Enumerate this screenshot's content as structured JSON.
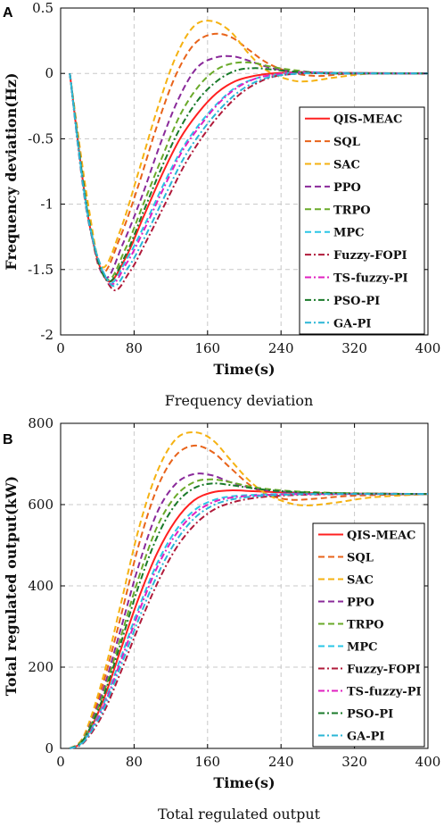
{
  "chart_data": [
    {
      "panel": "A",
      "type": "line",
      "caption": "Frequency deviation",
      "xlabel": "Time(s)",
      "ylabel": "Frequency deviation(Hz)",
      "xlim": [
        0,
        400
      ],
      "ylim": [
        -2,
        0.5
      ],
      "xticks": [
        0,
        80,
        160,
        240,
        320,
        400
      ],
      "yticks": [
        0.5,
        0,
        -0.5,
        -1,
        -1.5,
        -2
      ],
      "ytick_labels": [
        "0.5",
        "0",
        "-0.5",
        "-1",
        "-1.5",
        "-2"
      ],
      "xtick_labels": [
        "0",
        "80",
        "160",
        "240",
        "320",
        "400"
      ],
      "grid": true,
      "legend_position": "lower-right",
      "series": [
        {
          "name": "QIS-MEAC",
          "color": "#ff2020",
          "dash": "solid",
          "x": [
            10,
            30,
            50,
            70,
            90,
            110,
            130,
            150,
            170,
            190,
            210,
            230,
            260,
            300,
            400
          ],
          "y": [
            0,
            -1.1,
            -1.58,
            -1.42,
            -1.1,
            -0.78,
            -0.5,
            -0.3,
            -0.15,
            -0.06,
            -0.02,
            0.0,
            0.01,
            0.005,
            0.0
          ]
        },
        {
          "name": "SQL",
          "color": "#e8631a",
          "dash": "dash",
          "x": [
            10,
            30,
            45,
            65,
            85,
            105,
            125,
            145,
            165,
            185,
            205,
            225,
            250,
            280,
            320,
            400
          ],
          "y": [
            0,
            -1.05,
            -1.52,
            -1.25,
            -0.85,
            -0.4,
            -0.02,
            0.22,
            0.3,
            0.28,
            0.18,
            0.08,
            0.01,
            -0.02,
            0.0,
            0.0
          ]
        },
        {
          "name": "SAC",
          "color": "#f5b212",
          "dash": "dash",
          "x": [
            10,
            30,
            45,
            65,
            85,
            105,
            125,
            145,
            165,
            185,
            205,
            225,
            250,
            270,
            300,
            340,
            400
          ],
          "y": [
            0,
            -1.0,
            -1.48,
            -1.2,
            -0.75,
            -0.28,
            0.12,
            0.36,
            0.4,
            0.32,
            0.15,
            0.02,
            -0.05,
            -0.06,
            -0.03,
            0.0,
            0.0
          ]
        },
        {
          "name": "PPO",
          "color": "#8a2a9a",
          "dash": "dash",
          "x": [
            10,
            30,
            48,
            68,
            88,
            108,
            128,
            148,
            168,
            188,
            208,
            230,
            260,
            300,
            400
          ],
          "y": [
            0,
            -1.08,
            -1.56,
            -1.3,
            -0.95,
            -0.55,
            -0.2,
            0.04,
            0.12,
            0.13,
            0.09,
            0.04,
            0.01,
            0.0,
            0.0
          ]
        },
        {
          "name": "TRPO",
          "color": "#6aaa2a",
          "dash": "dash",
          "x": [
            10,
            30,
            50,
            70,
            90,
            110,
            130,
            150,
            170,
            190,
            210,
            230,
            260,
            300,
            400
          ],
          "y": [
            0,
            -1.08,
            -1.57,
            -1.35,
            -1.0,
            -0.65,
            -0.32,
            -0.1,
            0.03,
            0.08,
            0.08,
            0.05,
            0.02,
            0.0,
            0.0
          ]
        },
        {
          "name": "MPC",
          "color": "#2ac6e6",
          "dash": "dash",
          "x": [
            10,
            30,
            52,
            72,
            92,
            112,
            132,
            152,
            172,
            192,
            212,
            232,
            262,
            300,
            400
          ],
          "y": [
            0,
            -1.1,
            -1.59,
            -1.42,
            -1.15,
            -0.85,
            -0.58,
            -0.38,
            -0.22,
            -0.1,
            -0.04,
            -0.01,
            0.01,
            0.005,
            0.0
          ]
        },
        {
          "name": "Fuzzy-FOPI",
          "color": "#b01a3a",
          "dash": "dashdot",
          "x": [
            10,
            30,
            55,
            75,
            95,
            115,
            135,
            155,
            175,
            195,
            215,
            235,
            265,
            300,
            400
          ],
          "y": [
            0,
            -1.12,
            -1.64,
            -1.52,
            -1.26,
            -0.98,
            -0.7,
            -0.48,
            -0.3,
            -0.16,
            -0.07,
            -0.02,
            0.0,
            0.0,
            0.0
          ]
        },
        {
          "name": "TS-fuzzy-PI",
          "color": "#e020c0",
          "dash": "dashdot",
          "x": [
            10,
            30,
            52,
            72,
            92,
            112,
            132,
            152,
            172,
            192,
            212,
            232,
            262,
            300,
            400
          ],
          "y": [
            0,
            -1.1,
            -1.6,
            -1.45,
            -1.18,
            -0.88,
            -0.6,
            -0.4,
            -0.23,
            -0.11,
            -0.04,
            -0.01,
            0.01,
            0.0,
            0.0
          ]
        },
        {
          "name": "PSO-PI",
          "color": "#1a7a2a",
          "dash": "dashdot",
          "x": [
            10,
            30,
            50,
            70,
            90,
            110,
            130,
            150,
            170,
            190,
            210,
            230,
            260,
            300,
            400
          ],
          "y": [
            0,
            -1.09,
            -1.58,
            -1.4,
            -1.06,
            -0.72,
            -0.42,
            -0.2,
            -0.06,
            0.02,
            0.04,
            0.03,
            0.01,
            0.0,
            0.0
          ]
        },
        {
          "name": "GA-PI",
          "color": "#2ab6d6",
          "dash": "dashdot",
          "x": [
            10,
            30,
            54,
            74,
            94,
            114,
            134,
            154,
            174,
            194,
            214,
            234,
            264,
            300,
            400
          ],
          "y": [
            0,
            -1.11,
            -1.61,
            -1.48,
            -1.22,
            -0.93,
            -0.65,
            -0.44,
            -0.27,
            -0.14,
            -0.06,
            -0.02,
            0.0,
            0.0,
            0.0
          ]
        }
      ]
    },
    {
      "panel": "B",
      "type": "line",
      "caption": "Total regulated output",
      "xlabel": "Time(s)",
      "ylabel": "Total regulated output(kW)",
      "xlim": [
        0,
        400
      ],
      "ylim": [
        0,
        800
      ],
      "xticks": [
        0,
        80,
        160,
        240,
        320,
        400
      ],
      "yticks": [
        0,
        200,
        400,
        600,
        800
      ],
      "ytick_labels": [
        "0",
        "200",
        "400",
        "600",
        "800"
      ],
      "xtick_labels": [
        "0",
        "80",
        "160",
        "240",
        "320",
        "400"
      ],
      "grid": true,
      "legend_position": "lower-right",
      "series": [
        {
          "name": "QIS-MEAC",
          "color": "#ff2020",
          "dash": "solid",
          "x": [
            10,
            25,
            45,
            65,
            85,
            105,
            125,
            145,
            165,
            185,
            210,
            240,
            280,
            340,
            400
          ],
          "y": [
            0,
            20,
            110,
            240,
            370,
            480,
            560,
            610,
            630,
            635,
            633,
            630,
            628,
            627,
            626
          ]
        },
        {
          "name": "SQL",
          "color": "#e8631a",
          "dash": "dash",
          "x": [
            10,
            25,
            45,
            65,
            85,
            105,
            125,
            145,
            165,
            185,
            205,
            225,
            250,
            280,
            320,
            400
          ],
          "y": [
            0,
            28,
            150,
            320,
            500,
            640,
            720,
            745,
            730,
            690,
            650,
            625,
            612,
            615,
            622,
            626
          ]
        },
        {
          "name": "SAC",
          "color": "#f5b212",
          "dash": "dash",
          "x": [
            10,
            25,
            45,
            65,
            85,
            105,
            125,
            145,
            165,
            185,
            205,
            225,
            250,
            270,
            300,
            340,
            400
          ],
          "y": [
            0,
            30,
            165,
            350,
            540,
            680,
            760,
            778,
            760,
            710,
            660,
            625,
            603,
            598,
            605,
            618,
            626
          ]
        },
        {
          "name": "PPO",
          "color": "#8a2a9a",
          "dash": "dash",
          "x": [
            10,
            25,
            45,
            65,
            85,
            105,
            125,
            145,
            165,
            185,
            210,
            240,
            280,
            340,
            400
          ],
          "y": [
            0,
            25,
            135,
            290,
            450,
            580,
            650,
            675,
            672,
            655,
            640,
            632,
            628,
            627,
            626
          ]
        },
        {
          "name": "TRPO",
          "color": "#6aaa2a",
          "dash": "dash",
          "x": [
            10,
            25,
            45,
            65,
            85,
            105,
            125,
            145,
            165,
            185,
            210,
            240,
            280,
            340,
            400
          ],
          "y": [
            0,
            24,
            125,
            270,
            420,
            545,
            620,
            655,
            662,
            655,
            643,
            635,
            630,
            627,
            626
          ]
        },
        {
          "name": "MPC",
          "color": "#2ac6e6",
          "dash": "dash",
          "x": [
            10,
            25,
            45,
            65,
            85,
            105,
            125,
            145,
            165,
            185,
            210,
            240,
            280,
            340,
            400
          ],
          "y": [
            0,
            18,
            100,
            220,
            345,
            455,
            535,
            585,
            610,
            620,
            624,
            626,
            626,
            626,
            626
          ]
        },
        {
          "name": "Fuzzy-FOPI",
          "color": "#b01a3a",
          "dash": "dashdot",
          "x": [
            10,
            25,
            45,
            65,
            85,
            105,
            125,
            145,
            165,
            185,
            210,
            240,
            280,
            340,
            400
          ],
          "y": [
            0,
            14,
            80,
            185,
            300,
            405,
            490,
            548,
            585,
            604,
            616,
            622,
            625,
            626,
            626
          ]
        },
        {
          "name": "TS-fuzzy-PI",
          "color": "#e020c0",
          "dash": "dashdot",
          "x": [
            10,
            25,
            45,
            65,
            85,
            105,
            125,
            145,
            165,
            185,
            210,
            240,
            280,
            340,
            400
          ],
          "y": [
            0,
            17,
            95,
            212,
            335,
            445,
            525,
            577,
            605,
            617,
            622,
            625,
            626,
            626,
            626
          ]
        },
        {
          "name": "PSO-PI",
          "color": "#1a7a2a",
          "dash": "dashdot",
          "x": [
            10,
            25,
            45,
            65,
            85,
            105,
            125,
            145,
            165,
            185,
            210,
            240,
            280,
            340,
            400
          ],
          "y": [
            0,
            22,
            118,
            255,
            400,
            520,
            600,
            640,
            652,
            648,
            640,
            633,
            629,
            627,
            626
          ]
        },
        {
          "name": "GA-PI",
          "color": "#2ab6d6",
          "dash": "dashdot",
          "x": [
            10,
            25,
            45,
            65,
            85,
            105,
            125,
            145,
            165,
            185,
            210,
            240,
            280,
            340,
            400
          ],
          "y": [
            0,
            16,
            88,
            200,
            318,
            425,
            508,
            565,
            597,
            612,
            620,
            624,
            626,
            626,
            626
          ]
        }
      ]
    }
  ]
}
